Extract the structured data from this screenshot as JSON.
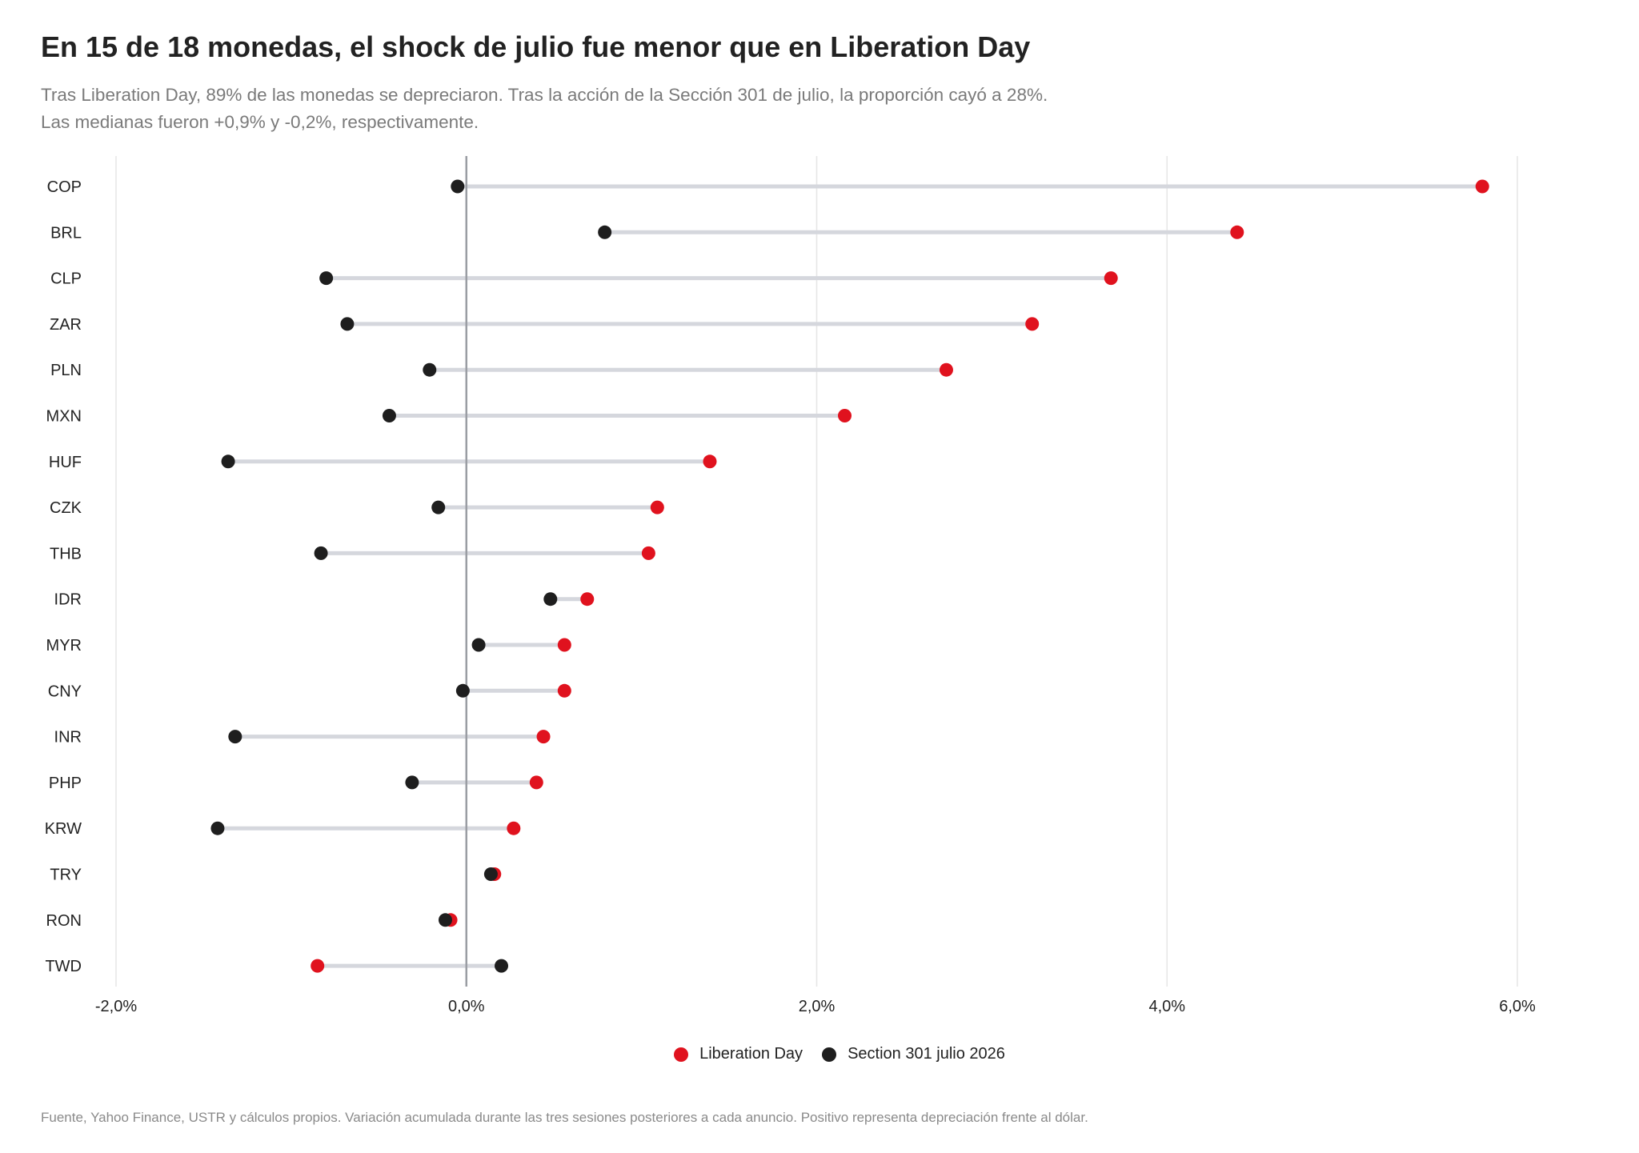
{
  "header": {
    "title": "En 15 de 18 monedas, el shock de julio fue menor que en Liberation Day",
    "subtitle_line1": "Tras Liberation Day, 89% de las monedas se depreciaron. Tras la acción de la Sección 301 de julio, la proporción cayó a 28%.",
    "subtitle_line2": "Las medianas fueron +0,9% y -0,2%, respectivamente."
  },
  "footer": {
    "source": "Fuente, Yahoo Finance, USTR y cálculos propios. Variación acumulada durante las tres sesiones posteriores a cada anuncio. Positivo representa depreciación frente al dólar."
  },
  "colors": {
    "liberation_day": "#e0121e",
    "section_301": "#1e1e1e",
    "connector": "#d5d7dd",
    "zero_line": "#9a9da3",
    "grid": "#e6e6e6"
  },
  "chart_data": {
    "type": "dumbbell",
    "categories": [
      "COP",
      "BRL",
      "CLP",
      "ZAR",
      "PLN",
      "MXN",
      "HUF",
      "CZK",
      "THB",
      "IDR",
      "MYR",
      "CNY",
      "INR",
      "PHP",
      "KRW",
      "TRY",
      "RON",
      "TWD"
    ],
    "series": [
      {
        "name": "Liberation Day",
        "values": [
          5.8,
          4.4,
          3.68,
          3.23,
          2.74,
          2.16,
          1.39,
          1.09,
          1.04,
          0.69,
          0.56,
          0.56,
          0.44,
          0.4,
          0.27,
          0.16,
          -0.09,
          -0.85
        ]
      },
      {
        "name": "Section 301 julio 2026",
        "values": [
          -0.05,
          0.79,
          -0.8,
          -0.68,
          -0.21,
          -0.44,
          -1.36,
          -0.16,
          -0.83,
          0.48,
          0.07,
          -0.02,
          -1.32,
          -0.31,
          -1.42,
          0.14,
          -0.12,
          0.2
        ]
      }
    ],
    "xlim": [
      -2.0,
      6.0
    ],
    "xticks": [
      -2,
      0,
      2,
      4,
      6
    ],
    "xtick_labels": [
      "-2,0%",
      "0,0%",
      "2,0%",
      "4,0%",
      "6,0%"
    ],
    "grid": true,
    "legend": "bottom-center",
    "xlabel": "",
    "ylabel": ""
  }
}
